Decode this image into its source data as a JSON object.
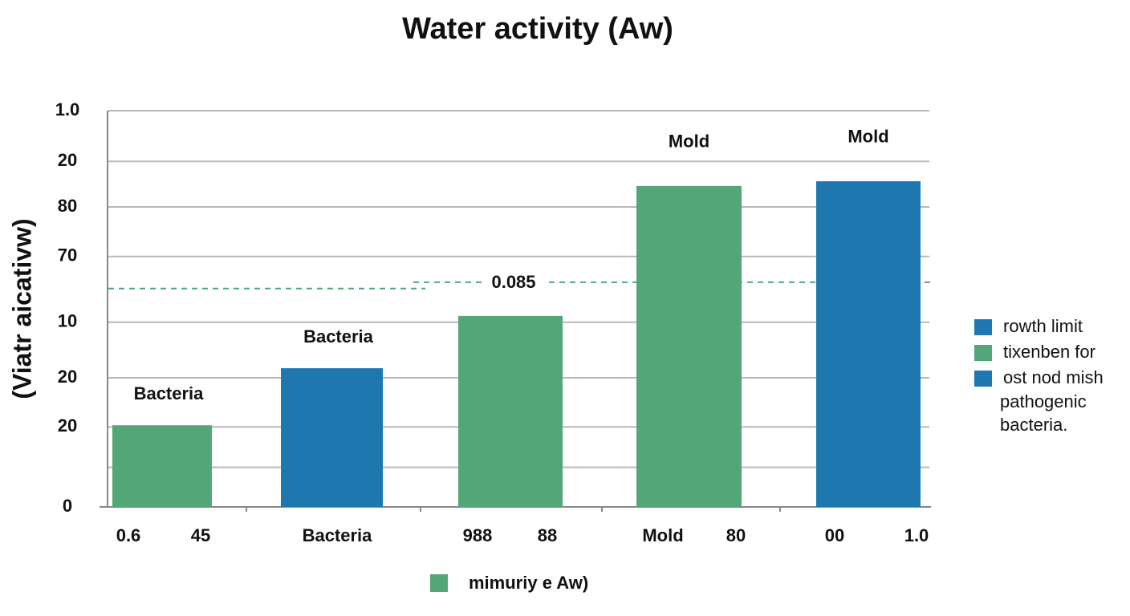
{
  "chart_data": {
    "type": "bar",
    "title": "Water activity (Aw)",
    "y_label": "(Viatr aicativw)",
    "values": [
      0.206,
      0.35,
      0.482,
      0.81,
      0.822
    ],
    "colors": [
      "#52a678",
      "#1f77b0",
      "#52a678",
      "#52a678",
      "#1f77b0"
    ],
    "bar_labels": [
      "Bacteria",
      "Bacteria",
      null,
      "Mold",
      "Mold"
    ],
    "x_labels": [
      "0.6",
      "45",
      "Bacteria",
      "988",
      "88",
      "Mold",
      "80",
      "00",
      "1.0"
    ],
    "ylim": [
      0,
      1
    ],
    "yticks": [
      0,
      {
        "value": 0.1,
        "label": null
      },
      {
        "value": 0.202,
        "label": "20"
      },
      {
        "value": 0.326,
        "label": "20"
      },
      {
        "value": 0.466,
        "label": "10"
      },
      {
        "value": 0.632,
        "label": "70"
      },
      {
        "value": 0.757,
        "label": "80"
      },
      {
        "value": 0.872,
        "label": "20"
      },
      {
        "value": 1,
        "label": "1.0"
      }
    ],
    "grid": true,
    "reference_lines": [
      0.551,
      0.567
    ],
    "reference_color": "#52a678",
    "annotation": "0.085",
    "legend": [
      {
        "name": "rowth limit",
        "color": "#1f77b0"
      },
      {
        "name": "tixenben for",
        "color": "#52a678"
      },
      {
        "name": "ost nod mish",
        "color": "#1f77b0"
      }
    ],
    "legend_note": [
      "pathogenic",
      "bacteria."
    ],
    "bottom_legend": {
      "name": "mimuriy e Aw)",
      "color": "#52a678"
    }
  }
}
